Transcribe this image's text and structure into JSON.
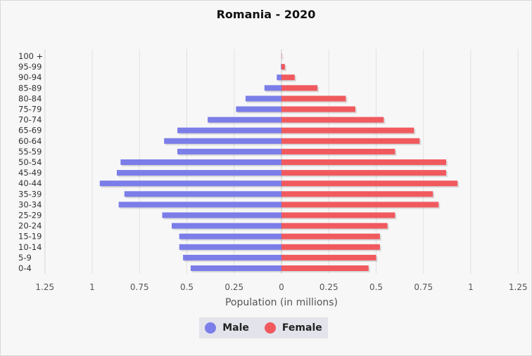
{
  "chart_data": {
    "type": "bar",
    "title": "Romania - 2020",
    "xlabel": "Population (in millions)",
    "ylabel": "",
    "xlim": [
      -1.25,
      1.25
    ],
    "x_ticks": [
      "1.25",
      "1",
      "0.75",
      "0.5",
      "0.25",
      "0",
      "0.25",
      "0.5",
      "0.75",
      "1",
      "1.25"
    ],
    "categories": [
      "0-4",
      "5-9",
      "10-14",
      "15-19",
      "20-24",
      "25-29",
      "30-34",
      "35-39",
      "40-44",
      "45-49",
      "50-54",
      "55-59",
      "60-64",
      "65-69",
      "70-74",
      "75-79",
      "80-84",
      "85-89",
      "90-94",
      "95-99",
      "100 +"
    ],
    "series": [
      {
        "name": "Male",
        "color": "#7b7de8",
        "values": [
          0.48,
          0.52,
          0.54,
          0.54,
          0.58,
          0.63,
          0.86,
          0.83,
          0.96,
          0.87,
          0.85,
          0.55,
          0.62,
          0.55,
          0.39,
          0.24,
          0.19,
          0.09,
          0.025,
          0.003,
          0.0005
        ]
      },
      {
        "name": "Female",
        "color": "#f05a5e",
        "values": [
          0.46,
          0.5,
          0.52,
          0.52,
          0.56,
          0.6,
          0.83,
          0.8,
          0.93,
          0.87,
          0.87,
          0.6,
          0.73,
          0.7,
          0.54,
          0.39,
          0.34,
          0.19,
          0.07,
          0.018,
          0.002
        ]
      }
    ],
    "grid": true,
    "legend": "bottom"
  },
  "legend": {
    "male_label": "Male",
    "female_label": "Female"
  }
}
